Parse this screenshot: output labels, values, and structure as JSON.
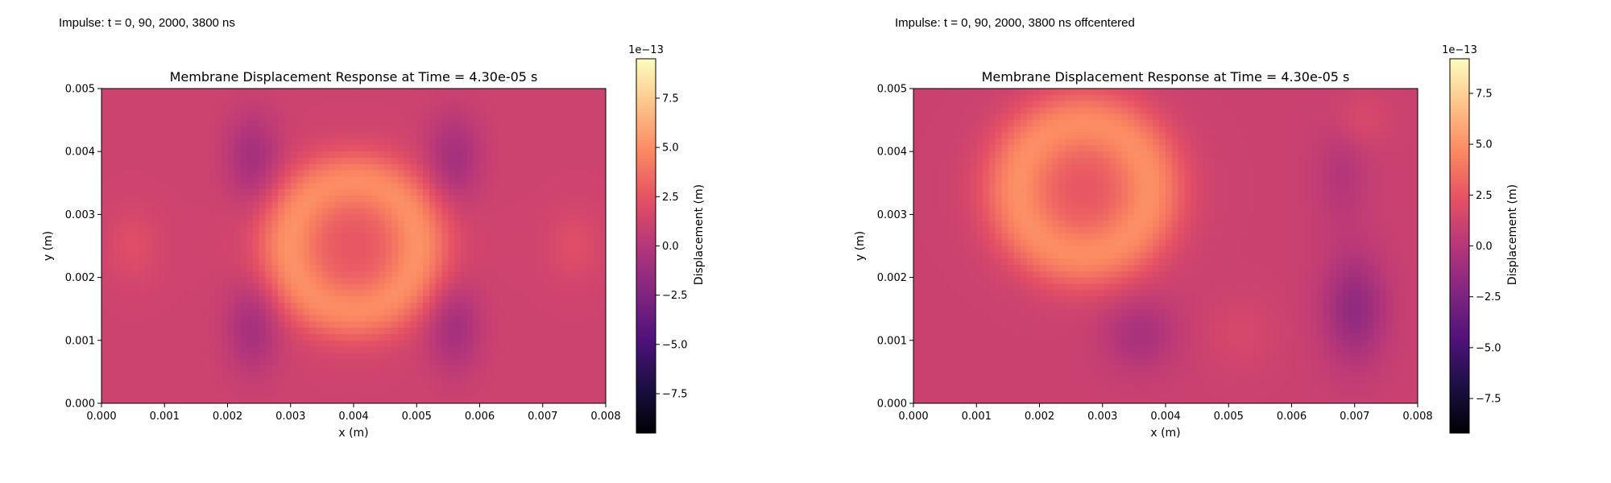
{
  "panels": [
    {
      "caption": "Impulse: t = 0, 90, 2000, 3800 ns"
    },
    {
      "caption": "Impulse: t = 0, 90, 2000, 3800 ns offcentered"
    }
  ],
  "colors": {
    "colormap": "magma",
    "magma_stops": [
      "#000004",
      "#1c1044",
      "#4f127b",
      "#812581",
      "#b5367a",
      "#e55064",
      "#fb8761",
      "#fec287",
      "#fcfdbf"
    ]
  },
  "chart_data": [
    {
      "type": "heatmap",
      "title": "Membrane Displacement Response at Time = 4.30e-05 s",
      "xlabel": "x (m)",
      "ylabel": "y (m)",
      "xlim": [
        0.0,
        0.008
      ],
      "ylim": [
        0.0,
        0.005
      ],
      "xticks": [
        "0.000",
        "0.001",
        "0.002",
        "0.003",
        "0.004",
        "0.005",
        "0.006",
        "0.007",
        "0.008"
      ],
      "yticks": [
        "0.000",
        "0.001",
        "0.002",
        "0.003",
        "0.004",
        "0.005"
      ],
      "colorbar": {
        "label": "Displacement (m)",
        "multiplier": "1e−13",
        "range": [
          -9.5,
          9.5
        ],
        "ticks": [
          "−7.5",
          "−5.0",
          "−2.5",
          "0.0",
          "2.5",
          "5.0",
          "7.5"
        ]
      },
      "background_value": 1.2,
      "features": [
        {
          "kind": "ring",
          "cx": 0.004,
          "cy": 0.0025,
          "r": 0.00105,
          "width": 0.00035,
          "amp": 3.3
        },
        {
          "kind": "blob",
          "cx": 0.004,
          "cy": 0.0025,
          "sx": 0.0009,
          "sy": 0.0007,
          "amp": 1.4
        },
        {
          "kind": "blob",
          "cx": 0.0024,
          "cy": 0.0039,
          "sx": 0.0003,
          "sy": 0.0005,
          "amp": -2.0
        },
        {
          "kind": "blob",
          "cx": 0.0056,
          "cy": 0.0039,
          "sx": 0.0003,
          "sy": 0.0005,
          "amp": -2.0
        },
        {
          "kind": "blob",
          "cx": 0.0024,
          "cy": 0.0012,
          "sx": 0.0003,
          "sy": 0.0005,
          "amp": -2.0
        },
        {
          "kind": "blob",
          "cx": 0.0056,
          "cy": 0.0012,
          "sx": 0.0003,
          "sy": 0.0005,
          "amp": -2.0
        },
        {
          "kind": "blob",
          "cx": 0.0005,
          "cy": 0.0025,
          "sx": 0.0003,
          "sy": 0.0004,
          "amp": 0.9
        },
        {
          "kind": "blob",
          "cx": 0.0075,
          "cy": 0.0025,
          "sx": 0.0003,
          "sy": 0.0004,
          "amp": 0.9
        }
      ]
    },
    {
      "type": "heatmap",
      "title": "Membrane Displacement Response at Time = 4.30e-05 s",
      "xlabel": "x (m)",
      "ylabel": "y (m)",
      "xlim": [
        0.0,
        0.008
      ],
      "ylim": [
        0.0,
        0.005
      ],
      "xticks": [
        "0.000",
        "0.001",
        "0.002",
        "0.003",
        "0.004",
        "0.005",
        "0.006",
        "0.007",
        "0.008"
      ],
      "yticks": [
        "0.000",
        "0.001",
        "0.002",
        "0.003",
        "0.004",
        "0.005"
      ],
      "colorbar": {
        "label": "Displacement (m)",
        "multiplier": "1e−13",
        "range": [
          -9.2,
          9.2
        ],
        "ticks": [
          "−7.5",
          "−5.0",
          "−2.5",
          "0.0",
          "2.5",
          "5.0",
          "7.5"
        ]
      },
      "background_value": 1.0,
      "features": [
        {
          "kind": "ring",
          "cx": 0.0027,
          "cy": 0.0034,
          "r": 0.00108,
          "width": 0.00038,
          "amp": 3.2
        },
        {
          "kind": "blob",
          "cx": 0.0027,
          "cy": 0.0034,
          "sx": 0.0009,
          "sy": 0.0008,
          "amp": 1.5
        },
        {
          "kind": "blob",
          "cx": 0.007,
          "cy": 0.0015,
          "sx": 0.00035,
          "sy": 0.0006,
          "amp": -2.6
        },
        {
          "kind": "blob",
          "cx": 0.0036,
          "cy": 0.0011,
          "sx": 0.0004,
          "sy": 0.0004,
          "amp": -1.6
        },
        {
          "kind": "blob",
          "cx": 0.0068,
          "cy": 0.0036,
          "sx": 0.0003,
          "sy": 0.0006,
          "amp": -1.0
        },
        {
          "kind": "blob",
          "cx": 0.0071,
          "cy": 0.0045,
          "sx": 0.0003,
          "sy": 0.0003,
          "amp": 0.8
        },
        {
          "kind": "blob",
          "cx": 0.0052,
          "cy": 0.0011,
          "sx": 0.0004,
          "sy": 0.0004,
          "amp": 0.6
        }
      ]
    }
  ]
}
